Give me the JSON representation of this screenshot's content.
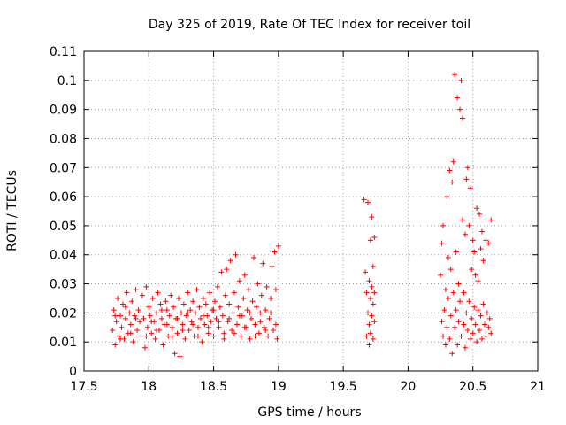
{
  "chart_data": {
    "type": "scatter",
    "title": "Day 325 of 2019, Rate Of TEC Index for receiver toil",
    "xlabel": "GPS time / hours",
    "ylabel": "ROTI / TECUs",
    "xlim": [
      17.5,
      21
    ],
    "ylim": [
      0,
      0.11
    ],
    "grid": true,
    "marker": "+",
    "color": "#ff0000",
    "x_ticks": [
      17.5,
      18,
      18.5,
      19,
      19.5,
      20,
      20.5,
      21
    ],
    "x_tick_labels": [
      "17.5",
      "18",
      "18.5",
      "19",
      "19.5",
      "20",
      "20.5",
      "21"
    ],
    "y_ticks": [
      0,
      0.01,
      0.02,
      0.03,
      0.04,
      0.05,
      0.06,
      0.07,
      0.08,
      0.09,
      0.1,
      0.11
    ],
    "y_tick_labels": [
      "0",
      "0.01",
      "0.02",
      "0.03",
      "0.04",
      "0.05",
      "0.06",
      "0.07",
      "0.08",
      "0.09",
      "0.1",
      "0.11"
    ],
    "series": [
      {
        "name": "ROTI",
        "points": [
          [
            17.72,
            0.014
          ],
          [
            17.73,
            0.021
          ],
          [
            17.74,
            0.009
          ],
          [
            17.75,
            0.017
          ],
          [
            17.76,
            0.025
          ],
          [
            17.77,
            0.012
          ],
          [
            17.78,
            0.019
          ],
          [
            17.79,
            0.015
          ],
          [
            17.8,
            0.023
          ],
          [
            17.81,
            0.011
          ],
          [
            17.82,
            0.018
          ],
          [
            17.83,
            0.027
          ],
          [
            17.84,
            0.013
          ],
          [
            17.85,
            0.02
          ],
          [
            17.86,
            0.016
          ],
          [
            17.87,
            0.024
          ],
          [
            17.88,
            0.01
          ],
          [
            17.89,
            0.019
          ],
          [
            17.9,
            0.028
          ],
          [
            17.91,
            0.014
          ],
          [
            17.92,
            0.021
          ],
          [
            17.93,
            0.017
          ],
          [
            17.94,
            0.012
          ],
          [
            17.95,
            0.026
          ],
          [
            17.96,
            0.018
          ],
          [
            17.97,
            0.008
          ],
          [
            17.98,
            0.029
          ],
          [
            17.99,
            0.015
          ],
          [
            18.0,
            0.022
          ],
          [
            18.01,
            0.019
          ],
          [
            18.02,
            0.013
          ],
          [
            18.03,
            0.025
          ],
          [
            18.04,
            0.017
          ],
          [
            18.05,
            0.011
          ],
          [
            18.06,
            0.02
          ],
          [
            18.07,
            0.027
          ],
          [
            18.08,
            0.014
          ],
          [
            18.09,
            0.023
          ],
          [
            18.1,
            0.018
          ],
          [
            18.11,
            0.009
          ],
          [
            18.12,
            0.016
          ],
          [
            18.13,
            0.024
          ],
          [
            18.14,
            0.021
          ],
          [
            18.15,
            0.012
          ],
          [
            18.16,
            0.019
          ],
          [
            18.17,
            0.026
          ],
          [
            18.18,
            0.015
          ],
          [
            18.19,
            0.022
          ],
          [
            18.2,
            0.006
          ],
          [
            18.21,
            0.018
          ],
          [
            18.22,
            0.013
          ],
          [
            18.23,
            0.025
          ],
          [
            18.24,
            0.005
          ],
          [
            18.25,
            0.02
          ],
          [
            18.26,
            0.016
          ],
          [
            18.27,
            0.023
          ],
          [
            18.28,
            0.011
          ],
          [
            18.29,
            0.019
          ],
          [
            18.3,
            0.027
          ],
          [
            18.31,
            0.014
          ],
          [
            18.32,
            0.021
          ],
          [
            18.33,
            0.017
          ],
          [
            18.34,
            0.024
          ],
          [
            18.35,
            0.012
          ],
          [
            18.36,
            0.02
          ],
          [
            18.37,
            0.028
          ],
          [
            18.38,
            0.015
          ],
          [
            18.39,
            0.022
          ],
          [
            18.4,
            0.018
          ],
          [
            18.41,
            0.01
          ],
          [
            18.42,
            0.025
          ],
          [
            18.43,
            0.016
          ],
          [
            18.44,
            0.023
          ],
          [
            18.45,
            0.019
          ],
          [
            18.46,
            0.013
          ],
          [
            18.47,
            0.027
          ],
          [
            18.48,
            0.017
          ],
          [
            18.49,
            0.021
          ],
          [
            18.5,
            0.012
          ],
          [
            18.51,
            0.024
          ],
          [
            18.52,
            0.018
          ],
          [
            18.53,
            0.029
          ],
          [
            18.54,
            0.015
          ],
          [
            18.55,
            0.022
          ],
          [
            18.56,
            0.034
          ],
          [
            18.57,
            0.019
          ],
          [
            18.58,
            0.013
          ],
          [
            18.59,
            0.026
          ],
          [
            18.6,
            0.035
          ],
          [
            18.61,
            0.017
          ],
          [
            18.62,
            0.023
          ],
          [
            18.63,
            0.038
          ],
          [
            18.64,
            0.014
          ],
          [
            18.65,
            0.02
          ],
          [
            18.66,
            0.027
          ],
          [
            18.67,
            0.04
          ],
          [
            18.68,
            0.016
          ],
          [
            18.69,
            0.022
          ],
          [
            18.7,
            0.031
          ],
          [
            18.71,
            0.012
          ],
          [
            18.72,
            0.019
          ],
          [
            18.73,
            0.025
          ],
          [
            18.74,
            0.033
          ],
          [
            18.75,
            0.015
          ],
          [
            18.76,
            0.021
          ],
          [
            18.77,
            0.028
          ],
          [
            18.78,
            0.011
          ],
          [
            18.79,
            0.018
          ],
          [
            18.8,
            0.024
          ],
          [
            18.81,
            0.039
          ],
          [
            18.82,
            0.016
          ],
          [
            18.83,
            0.022
          ],
          [
            18.84,
            0.03
          ],
          [
            18.85,
            0.013
          ],
          [
            18.86,
            0.02
          ],
          [
            18.87,
            0.026
          ],
          [
            18.88,
            0.037
          ],
          [
            18.89,
            0.015
          ],
          [
            18.9,
            0.021
          ],
          [
            18.91,
            0.029
          ],
          [
            18.92,
            0.012
          ],
          [
            18.93,
            0.018
          ],
          [
            18.94,
            0.025
          ],
          [
            18.95,
            0.036
          ],
          [
            18.96,
            0.014
          ],
          [
            18.97,
            0.041
          ],
          [
            18.98,
            0.028
          ],
          [
            18.99,
            0.011
          ],
          [
            19.0,
            0.043
          ],
          [
            17.74,
            0.019
          ],
          [
            17.78,
            0.011
          ],
          [
            17.82,
            0.022
          ],
          [
            17.86,
            0.013
          ],
          [
            17.9,
            0.018
          ],
          [
            17.94,
            0.02
          ],
          [
            17.98,
            0.012
          ],
          [
            18.02,
            0.017
          ],
          [
            18.06,
            0.014
          ],
          [
            18.1,
            0.021
          ],
          [
            18.14,
            0.016
          ],
          [
            18.18,
            0.012
          ],
          [
            18.22,
            0.018
          ],
          [
            18.26,
            0.014
          ],
          [
            18.3,
            0.02
          ],
          [
            18.34,
            0.016
          ],
          [
            18.38,
            0.012
          ],
          [
            18.42,
            0.019
          ],
          [
            18.46,
            0.015
          ],
          [
            18.5,
            0.021
          ],
          [
            18.54,
            0.017
          ],
          [
            18.58,
            0.011
          ],
          [
            18.62,
            0.018
          ],
          [
            18.66,
            0.013
          ],
          [
            18.7,
            0.019
          ],
          [
            18.74,
            0.015
          ],
          [
            18.78,
            0.02
          ],
          [
            18.82,
            0.012
          ],
          [
            18.86,
            0.017
          ],
          [
            18.9,
            0.014
          ],
          [
            18.94,
            0.02
          ],
          [
            18.98,
            0.016
          ],
          [
            19.66,
            0.059
          ],
          [
            19.67,
            0.034
          ],
          [
            19.68,
            0.027
          ],
          [
            19.68,
            0.012
          ],
          [
            19.69,
            0.058
          ],
          [
            19.69,
            0.02
          ],
          [
            19.7,
            0.031
          ],
          [
            19.7,
            0.009
          ],
          [
            19.7,
            0.016
          ],
          [
            19.71,
            0.025
          ],
          [
            19.71,
            0.045
          ],
          [
            19.71,
            0.013
          ],
          [
            19.72,
            0.053
          ],
          [
            19.72,
            0.029
          ],
          [
            19.72,
            0.019
          ],
          [
            19.73,
            0.036
          ],
          [
            19.73,
            0.011
          ],
          [
            19.73,
            0.023
          ],
          [
            19.74,
            0.046
          ],
          [
            19.74,
            0.017
          ],
          [
            19.74,
            0.027
          ],
          [
            20.25,
            0.033
          ],
          [
            20.26,
            0.044
          ],
          [
            20.26,
            0.017
          ],
          [
            20.27,
            0.05
          ],
          [
            20.27,
            0.012
          ],
          [
            20.28,
            0.021
          ],
          [
            20.29,
            0.028
          ],
          [
            20.29,
            0.009
          ],
          [
            20.3,
            0.06
          ],
          [
            20.3,
            0.015
          ],
          [
            20.31,
            0.039
          ],
          [
            20.31,
            0.025
          ],
          [
            20.32,
            0.069
          ],
          [
            20.32,
            0.011
          ],
          [
            20.33,
            0.035
          ],
          [
            20.33,
            0.019
          ],
          [
            20.34,
            0.065
          ],
          [
            20.34,
            0.006
          ],
          [
            20.35,
            0.072
          ],
          [
            20.35,
            0.027
          ],
          [
            20.36,
            0.102
          ],
          [
            20.36,
            0.015
          ],
          [
            20.37,
            0.041
          ],
          [
            20.37,
            0.021
          ],
          [
            20.38,
            0.094
          ],
          [
            20.38,
            0.009
          ],
          [
            20.39,
            0.03
          ],
          [
            20.39,
            0.017
          ],
          [
            20.4,
            0.09
          ],
          [
            20.4,
            0.024
          ],
          [
            20.41,
            0.1
          ],
          [
            20.41,
            0.012
          ],
          [
            20.42,
            0.087
          ],
          [
            20.42,
            0.052
          ],
          [
            20.43,
            0.016
          ],
          [
            20.43,
            0.027
          ],
          [
            20.44,
            0.047
          ],
          [
            20.44,
            0.008
          ],
          [
            20.45,
            0.066
          ],
          [
            20.45,
            0.02
          ],
          [
            20.46,
            0.07
          ],
          [
            20.46,
            0.014
          ],
          [
            20.47,
            0.05
          ],
          [
            20.47,
            0.024
          ],
          [
            20.48,
            0.063
          ],
          [
            20.48,
            0.011
          ],
          [
            20.49,
            0.035
          ],
          [
            20.49,
            0.018
          ],
          [
            20.5,
            0.045
          ],
          [
            20.5,
            0.013
          ],
          [
            20.51,
            0.022
          ],
          [
            20.51,
            0.041
          ],
          [
            20.52,
            0.033
          ],
          [
            20.52,
            0.016
          ],
          [
            20.53,
            0.056
          ],
          [
            20.53,
            0.01
          ],
          [
            20.54,
            0.021
          ],
          [
            20.54,
            0.031
          ],
          [
            20.55,
            0.054
          ],
          [
            20.55,
            0.014
          ],
          [
            20.56,
            0.042
          ],
          [
            20.56,
            0.019
          ],
          [
            20.57,
            0.048
          ],
          [
            20.57,
            0.011
          ],
          [
            20.58,
            0.038
          ],
          [
            20.58,
            0.023
          ],
          [
            20.59,
            0.016
          ],
          [
            20.6,
            0.045
          ],
          [
            20.6,
            0.012
          ],
          [
            20.61,
            0.02
          ],
          [
            20.62,
            0.044
          ],
          [
            20.62,
            0.015
          ],
          [
            20.63,
            0.018
          ],
          [
            20.64,
            0.052
          ],
          [
            20.64,
            0.013
          ]
        ]
      }
    ]
  }
}
